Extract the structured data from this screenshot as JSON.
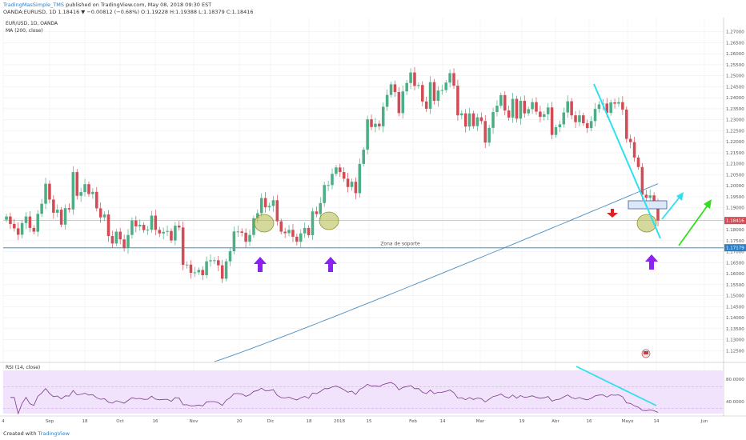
{
  "header": {
    "author": "TradingMasSimple_TMS",
    "published": "published on TradingView.com, May 08, 2018 09:30 EST",
    "symbol_line": "OANDA:EURUSD, 1D  1.18416 ▼ −0.00812 (−0.68%) O:1.19228 H:1.19388 L:1.18379 C:1.18416"
  },
  "footer": {
    "created_with": "Created with",
    "brand": "TradingView"
  },
  "colors": {
    "up": "#4cae84",
    "down": "#d24b55",
    "ma": "#4a8ec2",
    "support": "#5fb4e0",
    "trend": "#2de0ee",
    "purple": "#8b22f0",
    "rsi_bg": "#f1e3fb",
    "green_arrow": "#33dd22"
  },
  "chart_data": {
    "type": "candlestick",
    "title": "EUR/USD, 1D, OANDA",
    "indicator_label": "MA (200, close)",
    "rsi_label": "RSI (14, close)",
    "support_label": "Zona de soporte",
    "support_level": 1.17179,
    "current_price": 1.18416,
    "price_labels": [
      "1.18416",
      "1.17179"
    ],
    "ylim": [
      1.12,
      1.275
    ],
    "y_ticks": [
      "1.27000",
      "1.26500",
      "1.26000",
      "1.25500",
      "1.25000",
      "1.24500",
      "1.24000",
      "1.23500",
      "1.23000",
      "1.22500",
      "1.22000",
      "1.21500",
      "1.21000",
      "1.20500",
      "1.20000",
      "1.19500",
      "1.19000",
      "1.18500",
      "1.18000",
      "1.17500",
      "1.17000",
      "1.16500",
      "1.16000",
      "1.15500",
      "1.15000",
      "1.14500",
      "1.14000",
      "1.13500",
      "1.13000",
      "1.12500"
    ],
    "x_labels": [
      "4",
      "Sep",
      "18",
      "Oct",
      "16",
      "Nov",
      "20",
      "Dic",
      "18",
      "2018",
      "15",
      "Feb",
      "14",
      "Mar",
      "19",
      "Abr",
      "16",
      "Mayo",
      "14",
      "Jun"
    ],
    "rsi_ticks": [
      "80.0000",
      "40.0000"
    ],
    "rsi_levels": [
      70,
      30
    ],
    "closes": [
      1.186,
      1.1826,
      1.1806,
      1.1777,
      1.183,
      1.186,
      1.1808,
      1.1791,
      1.1872,
      1.1918,
      1.2009,
      1.1937,
      1.1877,
      1.1891,
      1.1823,
      1.1898,
      1.1892,
      1.2062,
      1.1954,
      1.1971,
      1.2007,
      1.1962,
      1.1972,
      1.1897,
      1.1856,
      1.1869,
      1.1771,
      1.1737,
      1.1791,
      1.1756,
      1.1716,
      1.1776,
      1.1842,
      1.1815,
      1.1822,
      1.1798,
      1.18,
      1.1864,
      1.1799,
      1.1783,
      1.179,
      1.1794,
      1.1751,
      1.1818,
      1.181,
      1.164,
      1.1641,
      1.1604,
      1.1606,
      1.1617,
      1.1593,
      1.1656,
      1.1661,
      1.1661,
      1.1638,
      1.1577,
      1.1656,
      1.1702,
      1.1792,
      1.1792,
      1.1786,
      1.1745,
      1.1776,
      1.1852,
      1.1875,
      1.1944,
      1.1902,
      1.1908,
      1.1934,
      1.1838,
      1.1791,
      1.1784,
      1.1799,
      1.1768,
      1.1745,
      1.1783,
      1.1808,
      1.1775,
      1.1883,
      1.1871,
      1.1921,
      1.2003,
      1.2003,
      1.2054,
      1.2083,
      1.2062,
      1.2032,
      1.1994,
      1.2018,
      1.1966,
      1.2099,
      1.2164,
      1.2302,
      1.2267,
      1.2282,
      1.227,
      1.2359,
      1.2413,
      1.2461,
      1.2426,
      1.233,
      1.2429,
      1.2467,
      1.2515,
      1.2454,
      1.2458,
      1.2383,
      1.235,
      1.2471,
      1.2386,
      1.2433,
      1.2435,
      1.2469,
      1.2512,
      1.2455,
      1.232,
      1.2329,
      1.2269,
      1.2329,
      1.2271,
      1.2311,
      1.2294,
      1.2196,
      1.2263,
      1.2335,
      1.2364,
      1.2412,
      1.2342,
      1.231,
      1.2395,
      1.2305,
      1.2386,
      1.2329,
      1.2348,
      1.238,
      1.2337,
      1.2313,
      1.2325,
      1.2356,
      1.2231,
      1.2266,
      1.2279,
      1.2333,
      1.2384,
      1.232,
      1.2289,
      1.232,
      1.2284,
      1.2262,
      1.2294,
      1.2349,
      1.237,
      1.2374,
      1.2331,
      1.2379,
      1.2373,
      1.238,
      1.2346,
      1.2213,
      1.2198,
      1.2128,
      1.2085,
      1.1959,
      1.1945,
      1.1956,
      1.1921,
      1.1842
    ],
    "ma200_start": 1.12,
    "ma200_end": 1.2009,
    "annotations": [
      "support-zone ellipses x3",
      "purple up arrows x3",
      "red down arrow",
      "cyan trendline",
      "cyan projection arrow",
      "green projection arrow"
    ]
  }
}
